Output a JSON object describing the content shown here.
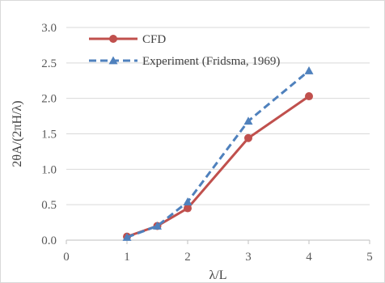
{
  "chart_data": {
    "type": "line",
    "xlabel": "λ/L",
    "ylabel": "2θA/(2πH/λ)",
    "xlim": [
      0,
      5
    ],
    "ylim": [
      0,
      3
    ],
    "x_ticks": [
      "0",
      "1",
      "2",
      "3",
      "4",
      "5"
    ],
    "y_ticks": [
      "0.0",
      "0.5",
      "1.0",
      "1.5",
      "2.0",
      "2.5",
      "3.0"
    ],
    "grid": "horizontal",
    "legend_position": "top-left",
    "series": [
      {
        "name": "CFD",
        "color": "#c0504d",
        "marker": "circle",
        "line_style": "solid",
        "x": [
          1,
          1.5,
          2,
          3,
          4
        ],
        "y": [
          0.05,
          0.2,
          0.45,
          1.44,
          2.03
        ]
      },
      {
        "name": "Experiment (Fridsma, 1969)",
        "color": "#4f81bd",
        "marker": "triangle",
        "line_style": "dashed",
        "x": [
          1,
          1.5,
          2,
          3,
          4
        ],
        "y": [
          0.04,
          0.2,
          0.54,
          1.68,
          2.39
        ]
      }
    ]
  }
}
